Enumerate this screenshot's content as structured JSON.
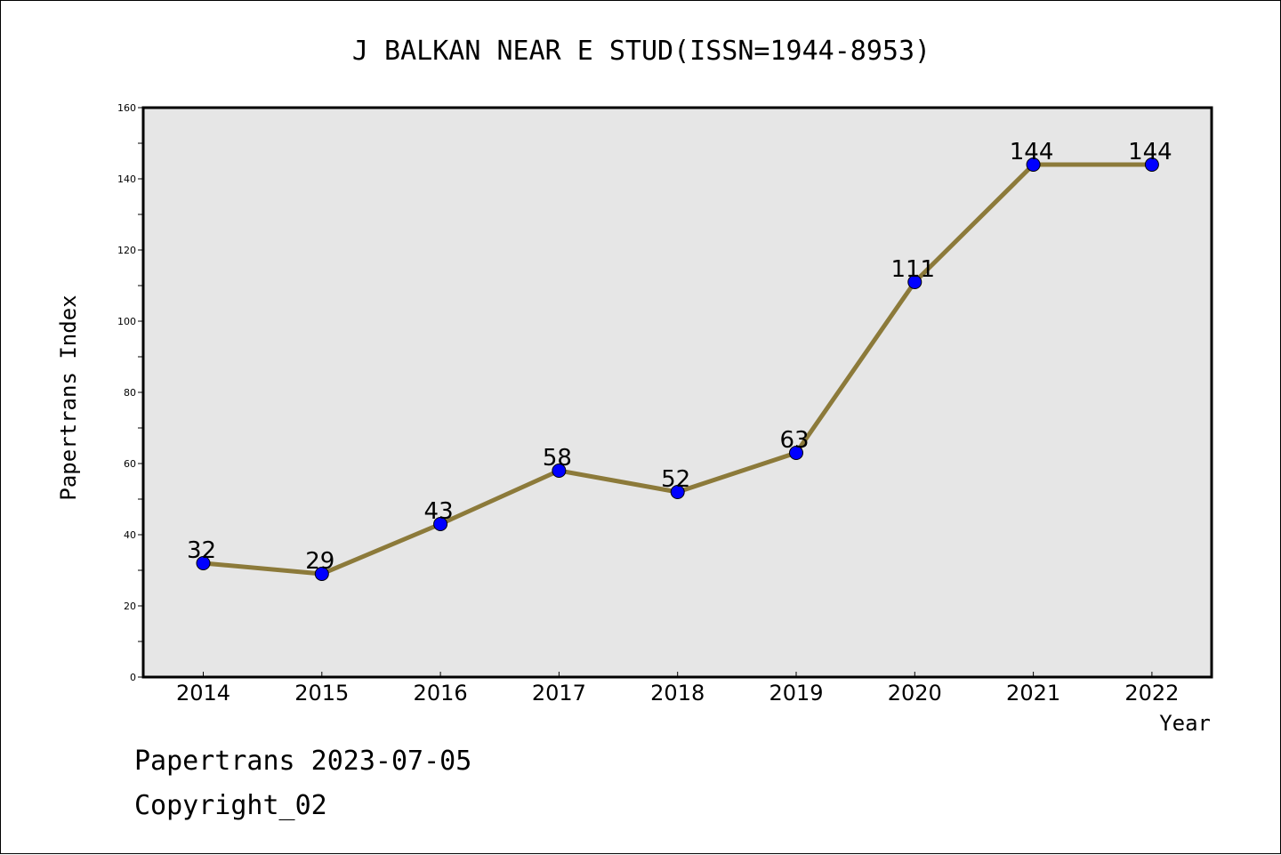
{
  "chart_data": {
    "type": "line",
    "title": "J BALKAN NEAR E STUD(ISSN=1944-8953)",
    "xlabel": "Year",
    "ylabel": "Papertrans Index",
    "x": [
      "2014",
      "2015",
      "2016",
      "2017",
      "2018",
      "2019",
      "2020",
      "2021",
      "2022"
    ],
    "values": [
      32,
      29,
      43,
      58,
      52,
      63,
      111,
      144,
      144
    ],
    "ylim": [
      0,
      160
    ],
    "yticks": [
      0,
      20,
      40,
      60,
      80,
      100,
      120,
      140,
      160
    ],
    "yminor_step": 10,
    "grid": false,
    "colors": {
      "line": "#8c7a3a",
      "marker": "#0000ff",
      "plot_background": "#e6e6e6"
    }
  },
  "footer": {
    "date_line": "Papertrans 2023-07-05",
    "copyright": "Copyright_02"
  }
}
